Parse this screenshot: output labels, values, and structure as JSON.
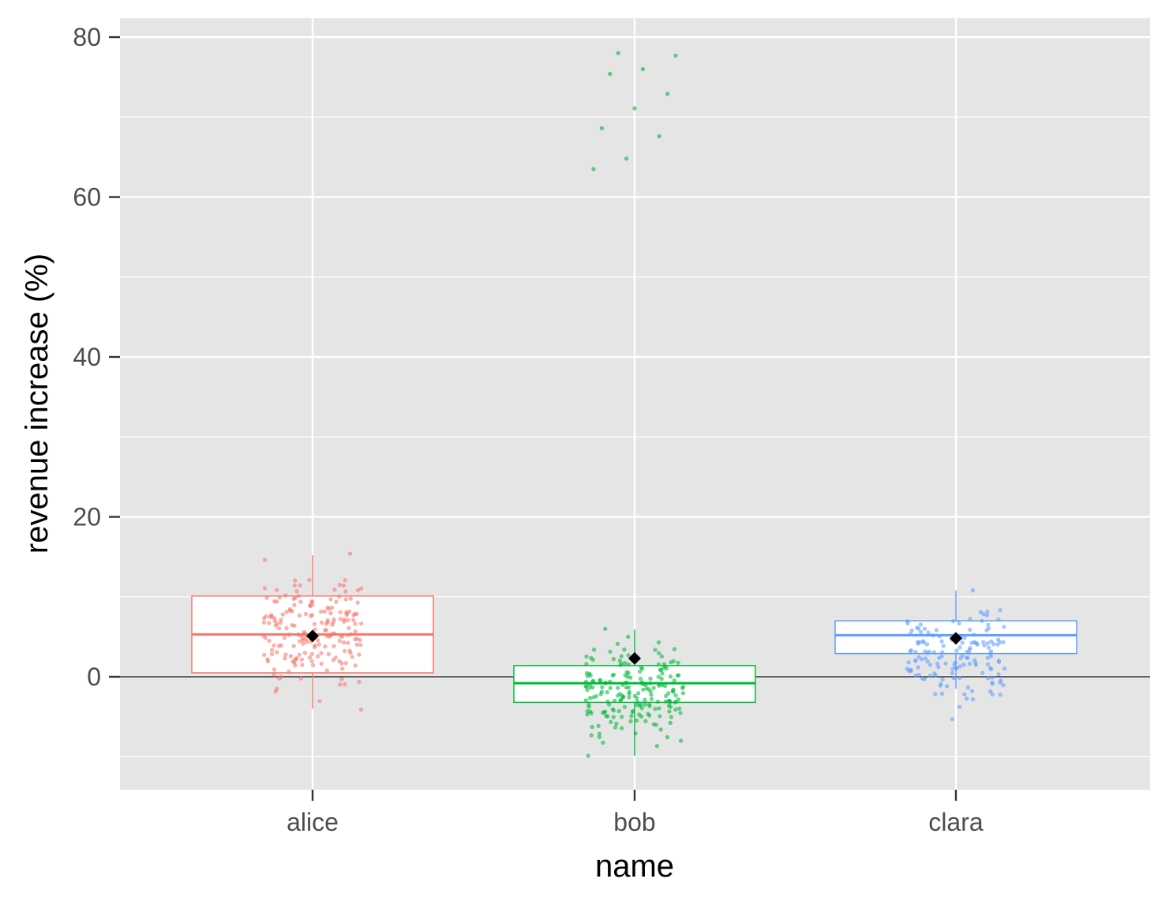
{
  "chart_data": {
    "type": "box",
    "xlabel": "name",
    "ylabel": "revenue increase (%)",
    "categories": [
      "alice",
      "bob",
      "clara"
    ],
    "ylim": [
      -14,
      82
    ],
    "yticks": [
      0,
      20,
      40,
      60,
      80
    ],
    "ytick_labels": [
      "0",
      "20",
      "40",
      "60",
      "80"
    ],
    "reference_line": 0,
    "grid": true,
    "legend": "none",
    "colors": {
      "alice": "#F8766D",
      "bob": "#00BA38",
      "clara": "#619CFF",
      "mean_marker": "#000000",
      "panel": "#E5E5E5"
    },
    "boxes": [
      {
        "name": "alice",
        "whisker_low": -4,
        "q1": 0.5,
        "median": 5.3,
        "q3": 10.1,
        "whisker_high": 15.2,
        "mean": 5.1,
        "n_points": 200,
        "points_low": -4.1,
        "points_high": 15.4
      },
      {
        "name": "bob",
        "whisker_low": -9.9,
        "q1": -3.2,
        "median": -0.8,
        "q3": 1.4,
        "whisker_high": 5.9,
        "mean": 2.3,
        "n_points": 200,
        "points_low": -9.9,
        "points_high": 6.0,
        "outliers": [
          63.5,
          64.8,
          67.6,
          68.6,
          71.1,
          72.9,
          75.4,
          76.0,
          77.7,
          78.0
        ]
      },
      {
        "name": "clara",
        "whisker_low": -1.5,
        "q1": 2.9,
        "median": 5.2,
        "q3": 7.0,
        "whisker_high": 10.8,
        "mean": 4.8,
        "n_points": 150,
        "points_low": -5.3,
        "points_high": 10.8
      }
    ]
  }
}
